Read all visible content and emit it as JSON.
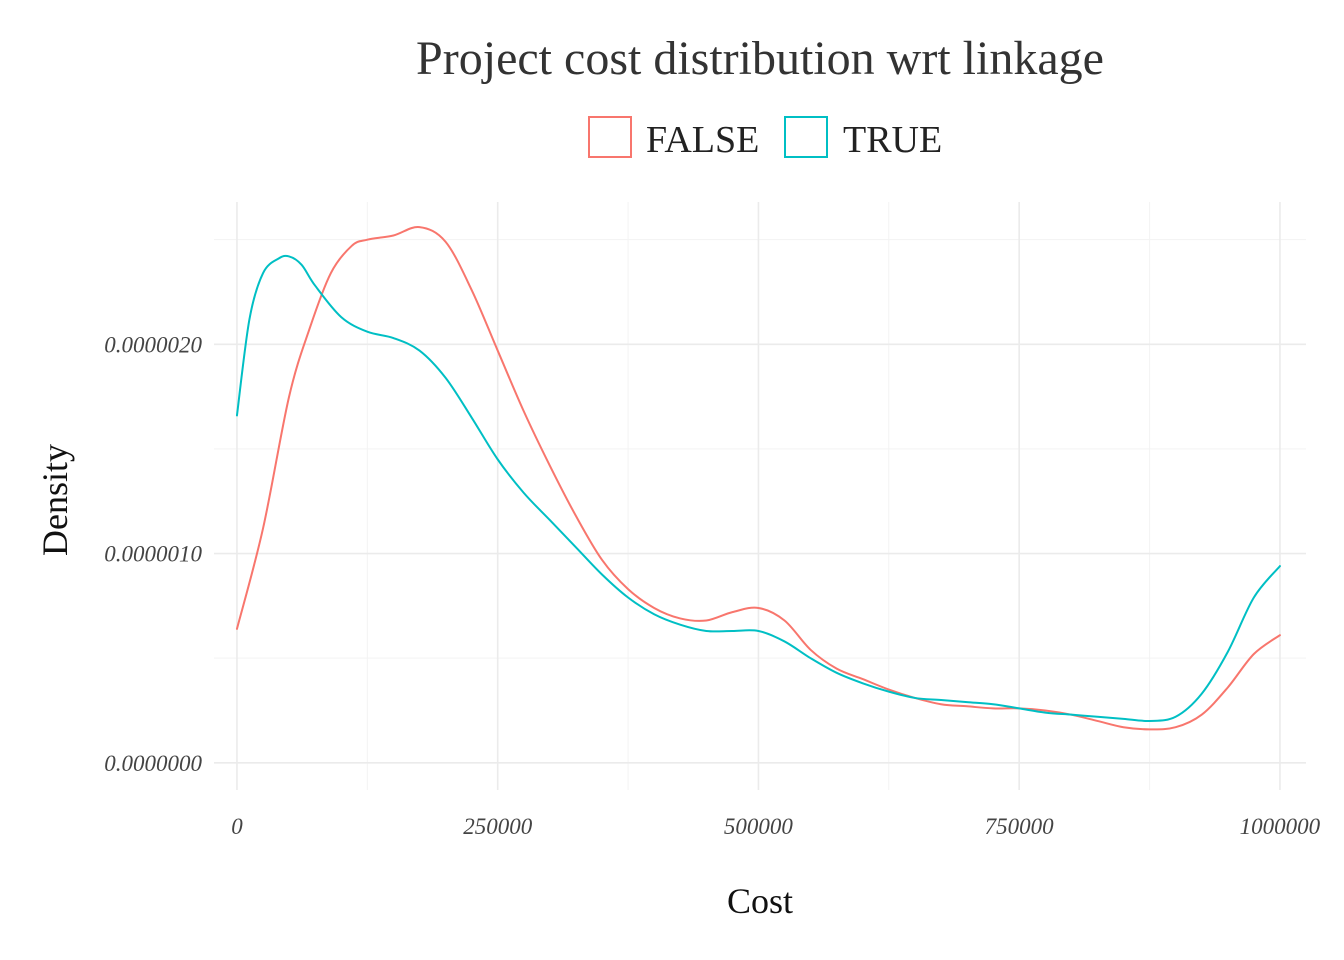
{
  "chart_data": {
    "type": "line",
    "title": "Project cost distribution wrt linkage",
    "xlabel": "Cost",
    "ylabel": "Density",
    "xlim": [
      -22000,
      1025000
    ],
    "ylim": [
      -1.3e-07,
      2.68e-06
    ],
    "x_ticks": [
      0,
      250000,
      500000,
      750000,
      1000000
    ],
    "x_tick_labels": [
      "0",
      "250000",
      "500000",
      "750000",
      "1000000"
    ],
    "x_minor_ticks": [
      125000,
      375000,
      625000,
      875000
    ],
    "y_ticks": [
      0,
      1e-06,
      2e-06
    ],
    "y_tick_labels": [
      "0.0000000",
      "0.0000010",
      "0.0000020"
    ],
    "y_minor_ticks": [
      5e-07,
      1.5e-06,
      2.5e-06
    ],
    "grid": true,
    "legend_position": "top",
    "series": [
      {
        "name": "FALSE",
        "color": "#F8766D",
        "points": [
          [
            0,
            6.4e-07
          ],
          [
            25000,
            1.12e-06
          ],
          [
            50000,
            1.75e-06
          ],
          [
            70000,
            2.08e-06
          ],
          [
            90000,
            2.34e-06
          ],
          [
            110000,
            2.47e-06
          ],
          [
            125000,
            2.5e-06
          ],
          [
            150000,
            2.52e-06
          ],
          [
            175000,
            2.56e-06
          ],
          [
            200000,
            2.49e-06
          ],
          [
            225000,
            2.26e-06
          ],
          [
            250000,
            1.97e-06
          ],
          [
            275000,
            1.68e-06
          ],
          [
            300000,
            1.42e-06
          ],
          [
            325000,
            1.18e-06
          ],
          [
            350000,
            9.7e-07
          ],
          [
            375000,
            8.3e-07
          ],
          [
            400000,
            7.4e-07
          ],
          [
            425000,
            6.9e-07
          ],
          [
            450000,
            6.8e-07
          ],
          [
            475000,
            7.2e-07
          ],
          [
            500000,
            7.4e-07
          ],
          [
            525000,
            6.8e-07
          ],
          [
            550000,
            5.4e-07
          ],
          [
            575000,
            4.5e-07
          ],
          [
            600000,
            4e-07
          ],
          [
            625000,
            3.5e-07
          ],
          [
            650000,
            3.1e-07
          ],
          [
            675000,
            2.8e-07
          ],
          [
            700000,
            2.7e-07
          ],
          [
            725000,
            2.6e-07
          ],
          [
            750000,
            2.6e-07
          ],
          [
            775000,
            2.5e-07
          ],
          [
            800000,
            2.3e-07
          ],
          [
            825000,
            2e-07
          ],
          [
            850000,
            1.7e-07
          ],
          [
            875000,
            1.6e-07
          ],
          [
            900000,
            1.7e-07
          ],
          [
            925000,
            2.3e-07
          ],
          [
            950000,
            3.6e-07
          ],
          [
            975000,
            5.2e-07
          ],
          [
            1000000,
            6.1e-07
          ]
        ]
      },
      {
        "name": "TRUE",
        "color": "#00BFC4",
        "points": [
          [
            0,
            1.66e-06
          ],
          [
            12000,
            2.12e-06
          ],
          [
            25000,
            2.34e-06
          ],
          [
            40000,
            2.41e-06
          ],
          [
            50000,
            2.42e-06
          ],
          [
            62000,
            2.38e-06
          ],
          [
            75000,
            2.28e-06
          ],
          [
            100000,
            2.13e-06
          ],
          [
            125000,
            2.06e-06
          ],
          [
            150000,
            2.03e-06
          ],
          [
            175000,
            1.97e-06
          ],
          [
            200000,
            1.84e-06
          ],
          [
            225000,
            1.65e-06
          ],
          [
            250000,
            1.45e-06
          ],
          [
            275000,
            1.29e-06
          ],
          [
            300000,
            1.16e-06
          ],
          [
            325000,
            1.03e-06
          ],
          [
            350000,
            9e-07
          ],
          [
            375000,
            7.9e-07
          ],
          [
            400000,
            7.1e-07
          ],
          [
            425000,
            6.6e-07
          ],
          [
            450000,
            6.3e-07
          ],
          [
            475000,
            6.3e-07
          ],
          [
            500000,
            6.3e-07
          ],
          [
            525000,
            5.8e-07
          ],
          [
            550000,
            5e-07
          ],
          [
            575000,
            4.3e-07
          ],
          [
            600000,
            3.8e-07
          ],
          [
            625000,
            3.4e-07
          ],
          [
            650000,
            3.1e-07
          ],
          [
            675000,
            3e-07
          ],
          [
            700000,
            2.9e-07
          ],
          [
            725000,
            2.8e-07
          ],
          [
            750000,
            2.6e-07
          ],
          [
            775000,
            2.4e-07
          ],
          [
            800000,
            2.3e-07
          ],
          [
            825000,
            2.2e-07
          ],
          [
            850000,
            2.1e-07
          ],
          [
            875000,
            2e-07
          ],
          [
            900000,
            2.2e-07
          ],
          [
            925000,
            3.3e-07
          ],
          [
            950000,
            5.3e-07
          ],
          [
            975000,
            7.9e-07
          ],
          [
            1000000,
            9.4e-07
          ]
        ]
      }
    ]
  }
}
